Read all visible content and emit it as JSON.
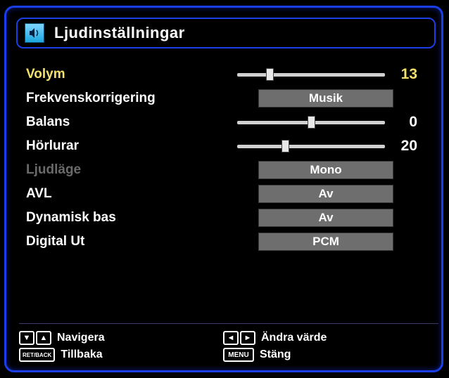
{
  "colors": {
    "background": "#000000",
    "border": "#1a3ee8",
    "text": "#ffffff",
    "highlight": "#f2e16a",
    "disabled": "#6a6a6a",
    "selectBox": "#6e6e6e",
    "sliderTrack": "#d0d0d0",
    "sliderThumb": "#e8e8e8"
  },
  "header": {
    "title": "Ljudinställningar",
    "icon": "sound-icon"
  },
  "items": [
    {
      "key": "volym",
      "label": "Volym",
      "type": "slider",
      "value": 13,
      "display": "13",
      "min": 0,
      "max": 63,
      "selected": true,
      "disabled": false
    },
    {
      "key": "frek",
      "label": "Frekvenskorrigering",
      "type": "select",
      "value": "Musik",
      "selected": false,
      "disabled": false
    },
    {
      "key": "balans",
      "label": "Balans",
      "type": "slider",
      "value": 0,
      "display": "0",
      "min": -31,
      "max": 31,
      "selected": false,
      "disabled": false
    },
    {
      "key": "horlurar",
      "label": "Hörlurar",
      "type": "slider",
      "value": 20,
      "display": "20",
      "min": 0,
      "max": 63,
      "selected": false,
      "disabled": false
    },
    {
      "key": "ljudlage",
      "label": "Ljudläge",
      "type": "select",
      "value": "Mono",
      "selected": false,
      "disabled": true
    },
    {
      "key": "avl",
      "label": "AVL",
      "type": "select",
      "value": "Av",
      "selected": false,
      "disabled": false
    },
    {
      "key": "dynbask",
      "label": "Dynamisk bas",
      "type": "select",
      "value": "Av",
      "selected": false,
      "disabled": false
    },
    {
      "key": "digut",
      "label": "Digital Ut",
      "type": "select",
      "value": "PCM",
      "selected": false,
      "disabled": false
    }
  ],
  "footer": {
    "navigate": {
      "keys": [
        "▼",
        "▲"
      ],
      "label": "Navigera"
    },
    "change": {
      "keys": [
        "◄",
        "►"
      ],
      "label": "Ändra värde"
    },
    "back": {
      "keys": [
        "RET/BACK"
      ],
      "label": "Tillbaka"
    },
    "close": {
      "keys": [
        "MENU"
      ],
      "label": "Stäng"
    }
  }
}
